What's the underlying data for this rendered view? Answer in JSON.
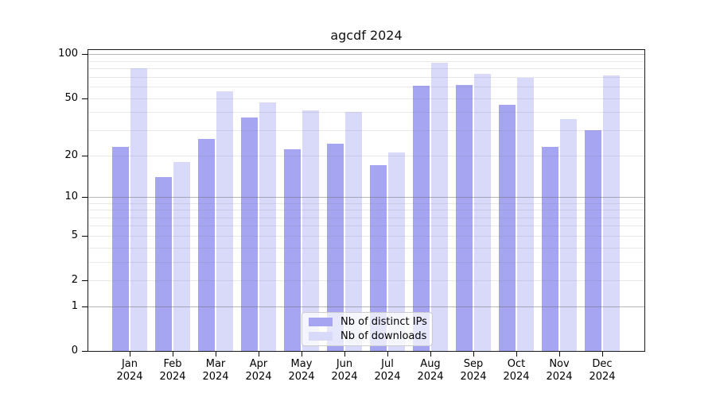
{
  "title": "agcdf 2024",
  "chart_data": {
    "type": "bar",
    "title": "agcdf 2024",
    "xlabel": "",
    "ylabel": "",
    "scale": "log10(1+value)",
    "ylim": [
      0,
      107
    ],
    "year": "2024",
    "months": [
      "Jan",
      "Feb",
      "Mar",
      "Apr",
      "May",
      "Jun",
      "Jul",
      "Aug",
      "Sep",
      "Oct",
      "Nov",
      "Dec"
    ],
    "categories": [
      "Jan 2024",
      "Feb 2024",
      "Mar 2024",
      "Apr 2024",
      "May 2024",
      "Jun 2024",
      "Jul 2024",
      "Aug 2024",
      "Sep 2024",
      "Oct 2024",
      "Nov 2024",
      "Dec 2024"
    ],
    "series": [
      {
        "name": "Nb of distinct IPs",
        "color": "#a5a5f2",
        "values": [
          23,
          14,
          26,
          37,
          22,
          24,
          17,
          61,
          62,
          45,
          23,
          30
        ]
      },
      {
        "name": "Nb of downloads",
        "color": "#d9d9f9",
        "values": [
          80,
          18,
          56,
          47,
          41,
          40,
          21,
          88,
          74,
          69,
          36,
          72
        ]
      }
    ],
    "y_ticks": [
      0,
      1,
      2,
      5,
      10,
      20,
      50,
      100
    ],
    "grid": {
      "orientation": "horizontal",
      "minor_values": [
        2,
        3,
        4,
        5,
        6,
        7,
        8,
        9,
        20,
        30,
        40,
        50,
        60,
        70,
        80,
        90
      ],
      "major_values": [
        1,
        10,
        100
      ]
    },
    "legend_position": "bottom-center-inside"
  },
  "legend": {
    "items": [
      {
        "label": "Nb of distinct IPs"
      },
      {
        "label": "Nb of downloads"
      }
    ]
  },
  "colors": {
    "background": "#ffffff",
    "axis": "#1a1a1a",
    "bar_distinct_ips": "#a5a5f2",
    "bar_downloads": "#d9d9f9",
    "legend_border": "#cccccc"
  }
}
